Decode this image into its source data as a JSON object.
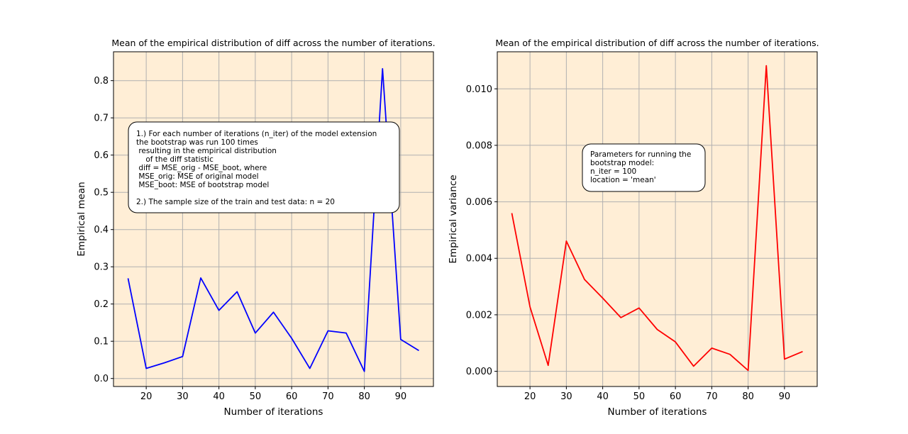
{
  "chart_data": [
    {
      "type": "line",
      "title": "Mean of the empirical distribution of diff across the number of iterations.",
      "xlabel": "Number of iterations",
      "ylabel": "Empirical mean",
      "x": [
        15,
        20,
        25,
        30,
        35,
        40,
        45,
        50,
        55,
        60,
        65,
        70,
        75,
        80,
        85,
        90,
        95
      ],
      "series": [
        {
          "values": [
            0.269,
            0.027,
            0.042,
            0.059,
            0.27,
            0.183,
            0.233,
            0.122,
            0.178,
            0.108,
            0.027,
            0.128,
            0.122,
            0.019,
            0.832,
            0.105,
            0.075
          ],
          "color": "#0000ff"
        }
      ],
      "xlim": [
        11,
        99
      ],
      "ylim": [
        -0.0215,
        0.8775
      ],
      "xticks": [
        20,
        30,
        40,
        50,
        60,
        70,
        80,
        90
      ],
      "yticks": [
        0.0,
        0.1,
        0.2,
        0.3,
        0.4,
        0.5,
        0.6,
        0.7,
        0.8
      ],
      "ytick_labels": [
        "0.0",
        "0.1",
        "0.2",
        "0.3",
        "0.4",
        "0.5",
        "0.6",
        "0.7",
        "0.8"
      ],
      "grid": true,
      "background": "#ffeed6",
      "annotation": {
        "lines": [
          "1.) For each number of iterations (n_iter) of the model extension",
          "the bootstrap was run 100 times",
          " resulting in the empirical distribution",
          "    of the diff statistic",
          " diff = MSE_orig - MSE_boot, where",
          " MSE_orig: MSE of original model",
          " MSE_boot: MSE of bootstrap model",
          "",
          "2.) The sample size of the train and test data: n = 20"
        ]
      }
    },
    {
      "type": "line",
      "title": "Mean of the empirical distribution of diff across the number of iterations.",
      "xlabel": "Number of iterations",
      "ylabel": "Empirical variance",
      "x": [
        15,
        20,
        25,
        30,
        35,
        40,
        45,
        50,
        55,
        60,
        65,
        70,
        75,
        80,
        85,
        90,
        95
      ],
      "series": [
        {
          "values": [
            0.0056,
            0.00228,
            0.00021,
            0.00461,
            0.00325,
            0.00259,
            0.0019,
            0.00224,
            0.00148,
            0.00104,
            0.00018,
            0.00082,
            0.0006,
            3e-05,
            0.01082,
            0.00043,
            0.0007
          ],
          "color": "#ff0000"
        }
      ],
      "xlim": [
        11,
        99
      ],
      "ylim": [
        -0.000538,
        0.011312
      ],
      "xticks": [
        20,
        30,
        40,
        50,
        60,
        70,
        80,
        90
      ],
      "yticks": [
        0.0,
        0.002,
        0.004,
        0.006,
        0.008,
        0.01
      ],
      "ytick_labels": [
        "0.000",
        "0.002",
        "0.004",
        "0.006",
        "0.008",
        "0.010"
      ],
      "grid": true,
      "background": "#ffeed6",
      "annotation": {
        "lines": [
          "Parameters for running the",
          "bootstrap model:",
          "n_iter = 100",
          "location = 'mean'"
        ]
      }
    }
  ]
}
